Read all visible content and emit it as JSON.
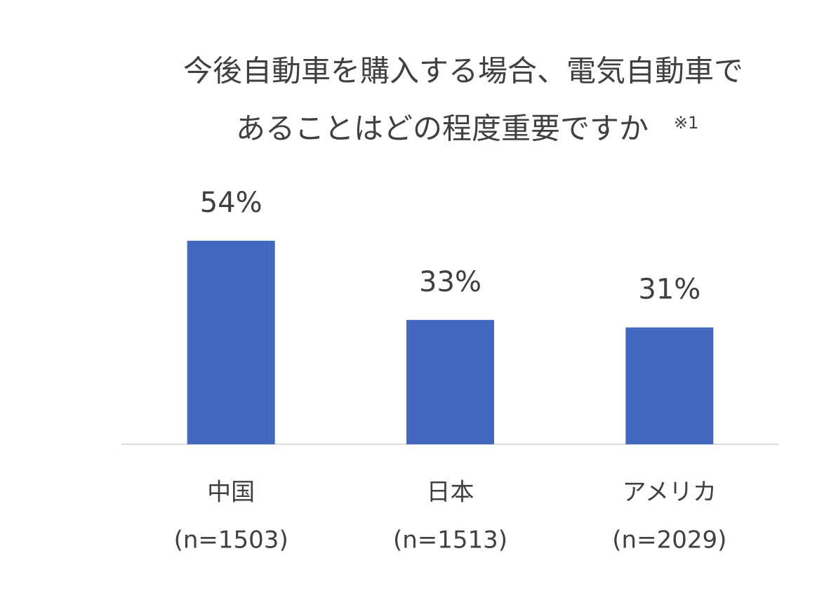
{
  "chart_data": {
    "type": "bar",
    "title_lines": [
      "今後自動車を購入する場合、電気自動車で",
      "あることはどの程度重要ですか"
    ],
    "title_note": "※1",
    "categories": [
      "中国",
      "日本",
      "アメリカ"
    ],
    "sample_sizes": [
      "(n=1503)",
      "(n=1513)",
      "(n=2029)"
    ],
    "values": [
      54,
      33,
      31
    ],
    "value_labels": [
      "54%",
      "33%",
      "31%"
    ],
    "color": "#4468c0"
  }
}
